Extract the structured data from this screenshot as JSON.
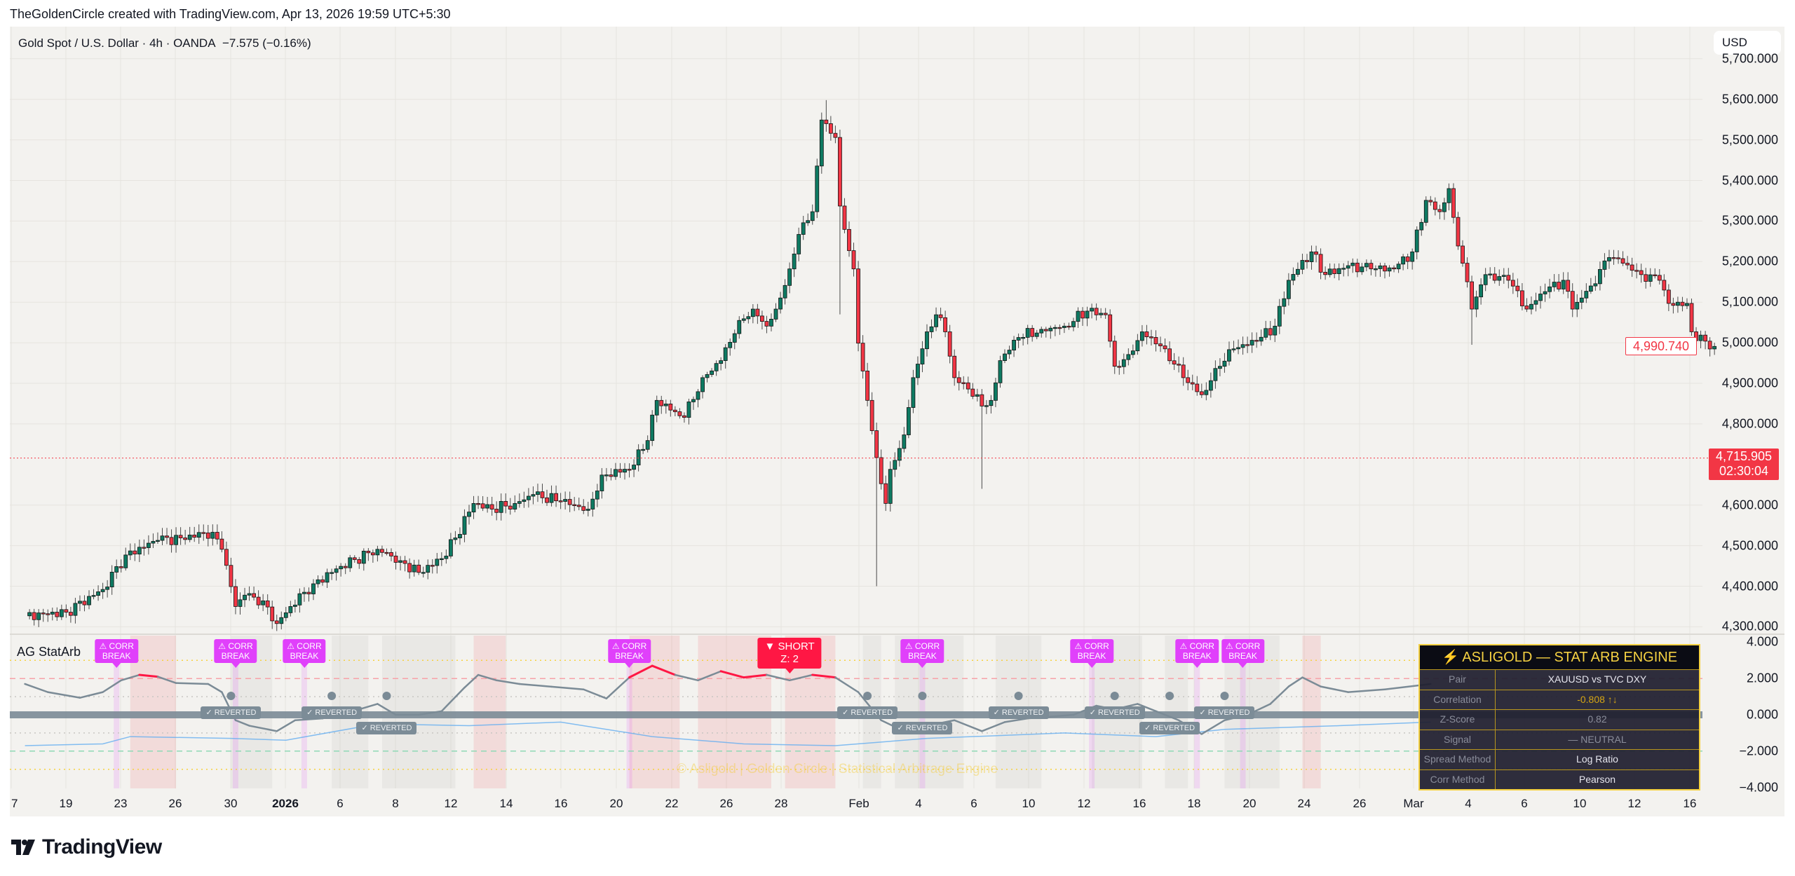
{
  "attribution": "TheGoldenCircle created with TradingView.com, Apr 13, 2026 19:59 UTC+5:30",
  "symbol": {
    "title": "Gold Spot / U.S. Dollar · 4h · OANDA",
    "change": "−7.575 (−0.16%)"
  },
  "currency": "USD",
  "price_axis": {
    "ticks": [
      {
        "value": 5700,
        "label": "5,700.000"
      },
      {
        "value": 5600,
        "label": "5,600.000"
      },
      {
        "value": 5500,
        "label": "5,500.000"
      },
      {
        "value": 5400,
        "label": "5,400.000"
      },
      {
        "value": 5300,
        "label": "5,300.000"
      },
      {
        "value": 5200,
        "label": "5,200.000"
      },
      {
        "value": 5100,
        "label": "5,100.000"
      },
      {
        "value": 5000,
        "label": "5,000.000"
      },
      {
        "value": 4900,
        "label": "4,900.000"
      },
      {
        "value": 4800,
        "label": "4,800.000"
      },
      {
        "value": 4600,
        "label": "4,600.000"
      },
      {
        "value": 4500,
        "label": "4,500.000"
      },
      {
        "value": 4400,
        "label": "4,400.000"
      },
      {
        "value": 4300,
        "label": "4,300.000"
      }
    ]
  },
  "last_price": "4,990.740",
  "price_line": {
    "price": "4,715.905",
    "value": 4715.905,
    "countdown": "02:30:04"
  },
  "x_axis": {
    "labels": [
      "7",
      "19",
      "23",
      "26",
      "30",
      "2026",
      "6",
      "8",
      "12",
      "14",
      "16",
      "20",
      "22",
      "26",
      "28",
      "Feb",
      "4",
      "6",
      "10",
      "12",
      "16",
      "18",
      "20",
      "24",
      "26",
      "Mar",
      "4",
      "6",
      "10",
      "12",
      "16"
    ]
  },
  "colors": {
    "up": "#0e7a62",
    "down": "#f23645",
    "zscore": "#7b8b96",
    "zscore_extreme": "#ff1744",
    "corr_break": "#e040fb",
    "table_gold": "#f5d142"
  },
  "chart_data": {
    "type": "candlestick",
    "ylim": [
      4250,
      5730
    ],
    "closes_by_bar": [
      [
        3,
        4327
      ],
      [
        12,
        4336
      ],
      [
        20,
        4392
      ],
      [
        25,
        4477
      ],
      [
        32,
        4513
      ],
      [
        37,
        4519
      ],
      [
        44,
        4533
      ],
      [
        46,
        4491
      ],
      [
        49,
        4350
      ],
      [
        51,
        4378
      ],
      [
        55,
        4364
      ],
      [
        58,
        4308
      ],
      [
        61,
        4350
      ],
      [
        66,
        4406
      ],
      [
        72,
        4449
      ],
      [
        80,
        4491
      ],
      [
        85,
        4463
      ],
      [
        89,
        4434
      ],
      [
        94,
        4468
      ],
      [
        97,
        4519
      ],
      [
        101,
        4604
      ],
      [
        105,
        4590
      ],
      [
        110,
        4604
      ],
      [
        114,
        4626
      ],
      [
        120,
        4609
      ],
      [
        126,
        4590
      ],
      [
        129,
        4674
      ],
      [
        135,
        4688
      ],
      [
        139,
        4759
      ],
      [
        141,
        4858
      ],
      [
        145,
        4830
      ],
      [
        147,
        4816
      ],
      [
        151,
        4914
      ],
      [
        155,
        4956
      ],
      [
        159,
        5055
      ],
      [
        162,
        5083
      ],
      [
        165,
        5041
      ],
      [
        167,
        5083
      ],
      [
        170,
        5182
      ],
      [
        172,
        5267
      ],
      [
        175,
        5323
      ],
      [
        177,
        5549
      ],
      [
        178,
        5540
      ],
      [
        180,
        5506
      ],
      [
        181,
        5337
      ],
      [
        184,
        5182
      ],
      [
        185,
        4999
      ],
      [
        187,
        4858
      ],
      [
        189,
        4717
      ],
      [
        191,
        4604
      ],
      [
        192,
        4688
      ],
      [
        195,
        4773
      ],
      [
        197,
        4914
      ],
      [
        200,
        5027
      ],
      [
        202,
        5069
      ],
      [
        204,
        5027
      ],
      [
        206,
        4914
      ],
      [
        209,
        4886
      ],
      [
        212,
        4844
      ],
      [
        214,
        4858
      ],
      [
        216,
        4956
      ],
      [
        220,
        5013
      ],
      [
        225,
        5033
      ],
      [
        230,
        5041
      ],
      [
        235,
        5078
      ],
      [
        239,
        5069
      ],
      [
        241,
        4942
      ],
      [
        244,
        4971
      ],
      [
        247,
        5027
      ],
      [
        252,
        4985
      ],
      [
        256,
        4914
      ],
      [
        260,
        4872
      ],
      [
        264,
        4942
      ],
      [
        267,
        4985
      ],
      [
        272,
        5004
      ],
      [
        276,
        5041
      ],
      [
        279,
        5154
      ],
      [
        284,
        5224
      ],
      [
        287,
        5168
      ],
      [
        292,
        5190
      ],
      [
        297,
        5182
      ],
      [
        302,
        5182
      ],
      [
        306,
        5224
      ],
      [
        309,
        5351
      ],
      [
        312,
        5323
      ],
      [
        314,
        5380
      ],
      [
        315,
        5309
      ],
      [
        317,
        5196
      ],
      [
        319,
        5083
      ],
      [
        322,
        5168
      ],
      [
        327,
        5154
      ],
      [
        331,
        5083
      ],
      [
        335,
        5126
      ],
      [
        339,
        5154
      ],
      [
        341,
        5083
      ],
      [
        345,
        5140
      ],
      [
        349,
        5210
      ],
      [
        352,
        5196
      ],
      [
        356,
        5168
      ],
      [
        360,
        5154
      ],
      [
        362,
        5097
      ],
      [
        366,
        5097
      ],
      [
        367,
        5027
      ],
      [
        370,
        5004
      ],
      [
        372,
        4991
      ]
    ]
  },
  "indicator": {
    "name": "AG StatArb",
    "ticks": [
      {
        "value": 4,
        "label": "4.000"
      },
      {
        "value": 2,
        "label": "2.000"
      },
      {
        "value": 0,
        "label": "0.000"
      },
      {
        "value": -2,
        "label": "−2.000"
      },
      {
        "value": -4,
        "label": "−4.000"
      }
    ],
    "ylim": [
      -4.1,
      4.3
    ],
    "entry_threshold": 2,
    "zscore_by_bar": [
      [
        3,
        1.7
      ],
      [
        8,
        1.25
      ],
      [
        15,
        0.94
      ],
      [
        20,
        1.25
      ],
      [
        24,
        1.9
      ],
      [
        28,
        2.2
      ],
      [
        32,
        2.1
      ],
      [
        36,
        1.75
      ],
      [
        43,
        1.7
      ],
      [
        46,
        1.25
      ],
      [
        49,
        -0.3
      ],
      [
        52,
        -0.6
      ],
      [
        58,
        -0.9
      ],
      [
        62,
        -0.3
      ],
      [
        68,
        -0.2
      ],
      [
        71,
        0
      ],
      [
        76,
        0.3
      ],
      [
        80,
        0.6
      ],
      [
        84,
        0
      ],
      [
        89,
        0
      ],
      [
        94,
        0.2
      ],
      [
        99,
        1.5
      ],
      [
        102,
        2.2
      ],
      [
        106,
        1.9
      ],
      [
        111,
        1.7
      ],
      [
        118,
        1.55
      ],
      [
        125,
        1.4
      ],
      [
        130,
        0.9
      ],
      [
        135,
        2.06
      ],
      [
        140,
        2.7
      ],
      [
        145,
        2.2
      ],
      [
        150,
        1.9
      ],
      [
        155,
        2.4
      ],
      [
        160,
        2.06
      ],
      [
        165,
        2.2
      ],
      [
        170,
        1.9
      ],
      [
        175,
        2.2
      ],
      [
        180,
        2.06
      ],
      [
        185,
        1.25
      ],
      [
        190,
        -0.3
      ],
      [
        195,
        -0.9
      ],
      [
        200,
        -0.6
      ],
      [
        206,
        -0.3
      ],
      [
        212,
        -0.9
      ],
      [
        217,
        -0.4
      ],
      [
        222,
        -0.2
      ],
      [
        227,
        -0.1
      ],
      [
        232,
        0
      ],
      [
        237,
        0.5
      ],
      [
        241,
        0.3
      ],
      [
        246,
        0.6
      ],
      [
        250,
        0.2
      ],
      [
        255,
        -0.3
      ],
      [
        260,
        -1.06
      ],
      [
        265,
        -0.3
      ],
      [
        270,
        0
      ],
      [
        275,
        0.6
      ],
      [
        279,
        1.56
      ],
      [
        282,
        2.06
      ],
      [
        286,
        1.56
      ],
      [
        292,
        1.25
      ],
      [
        300,
        1.4
      ],
      [
        310,
        1.7
      ]
    ],
    "flags": [
      {
        "type": "corr_break",
        "bar": 23,
        "label": "⚠ CORR\nBREAK"
      },
      {
        "type": "corr_break",
        "bar": 49,
        "label": "⚠ CORR\nBREAK"
      },
      {
        "type": "corr_break",
        "bar": 64,
        "label": "⚠ CORR\nBREAK"
      },
      {
        "type": "corr_break",
        "bar": 135,
        "label": "⚠ CORR\nBREAK"
      },
      {
        "type": "short",
        "bar": 170,
        "label": "▼ SHORT\nZ: 2"
      },
      {
        "type": "corr_break",
        "bar": 199,
        "label": "⚠ CORR\nBREAK"
      },
      {
        "type": "corr_break",
        "bar": 236,
        "label": "⚠ CORR\nBREAK"
      },
      {
        "type": "corr_break",
        "bar": 259,
        "label": "⚠ CORR\nBREAK"
      },
      {
        "type": "corr_break",
        "bar": 269,
        "label": "⚠ CORR\nBREAK"
      }
    ],
    "reverted": {
      "label": "✓ REVERTED",
      "bars": [
        48,
        70,
        82,
        187,
        199,
        220,
        241,
        253,
        265
      ]
    },
    "watermark": "© Asligold  |  Golden Circle  |  Statistical Arbitrage Engine",
    "table": {
      "title": "⚡ ASLIGOLD — STAT ARB ENGINE",
      "rows": [
        {
          "label": "Pair",
          "value": "XAUUSD vs TVC DXY",
          "color": "#e6e6ee"
        },
        {
          "label": "Correlation",
          "value": "-0.808 ↑↓",
          "color": "#d4a514"
        },
        {
          "label": "Z-Score",
          "value": "0.82",
          "color": "#8a8d9a"
        },
        {
          "label": "Signal",
          "value": "—  NEUTRAL",
          "color": "#8a8d9a"
        },
        {
          "label": "Spread Method",
          "value": "Log Ratio",
          "color": "#e6e6ee"
        },
        {
          "label": "Corr Method",
          "value": "Pearson",
          "color": "#e6e6ee"
        }
      ]
    }
  },
  "logo": "TradingView"
}
